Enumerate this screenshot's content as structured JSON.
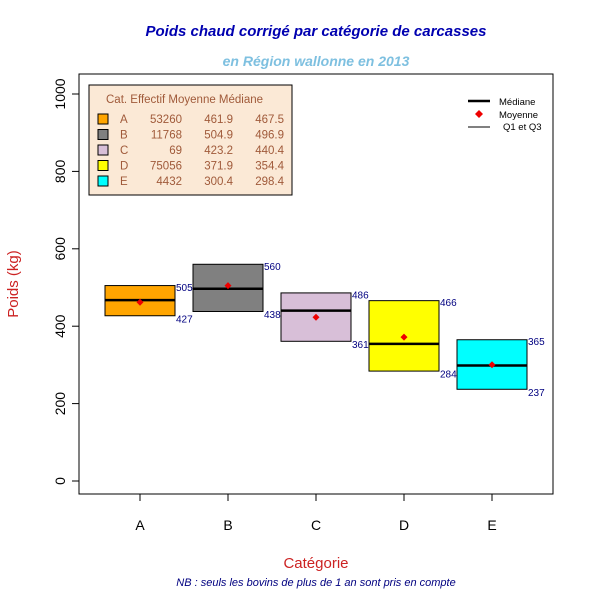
{
  "colors": {
    "title": "#0000b0",
    "subtitle": "#7ec0e0",
    "axis_label": "#cc2222",
    "legend_bg": "#fbe9d6",
    "mean_marker": "#ee0000",
    "value_labels": "#000080"
  },
  "chart_data": {
    "type": "box",
    "title": "Poids chaud corrigé par catégorie de carcasses",
    "subtitle": "en Région wallonne en 2013",
    "xlabel": "Catégorie",
    "ylabel": "Poids (kg)",
    "note": "NB : seuls les bovins de plus de 1 an sont pris en compte",
    "ylim": [
      0,
      1000
    ],
    "yticks": [
      "0",
      "200",
      "400",
      "600",
      "800",
      "1000"
    ],
    "categories": [
      {
        "name": "A",
        "color": "#ffa500",
        "q1": 427,
        "q3": 505,
        "median": 467.5,
        "mean": 461.9,
        "q1_label": "427",
        "q3_label": "505"
      },
      {
        "name": "B",
        "color": "#808080",
        "q1": 438,
        "q3": 560,
        "median": 496.9,
        "mean": 504.9,
        "q1_label": "438",
        "q3_label": "560"
      },
      {
        "name": "C",
        "color": "#d8bfd8",
        "q1": 361,
        "q3": 486,
        "median": 440.4,
        "mean": 423.2,
        "q1_label": "361",
        "q3_label": "486"
      },
      {
        "name": "D",
        "color": "#ffff00",
        "q1": 284,
        "q3": 466,
        "median": 354.4,
        "mean": 371.9,
        "q1_label": "284",
        "q3_label": "466"
      },
      {
        "name": "E",
        "color": "#00ffff",
        "q1": 237,
        "q3": 365,
        "median": 298.4,
        "mean": 300.4,
        "q1_label": "237",
        "q3_label": "365"
      }
    ],
    "table_legend": {
      "header": "Cat. Effectif Moyenne Médiane",
      "rows": [
        {
          "cat": "A",
          "effectif": "53260",
          "moyenne": "461.9",
          "mediane": "467.5"
        },
        {
          "cat": "B",
          "effectif": "11768",
          "moyenne": "504.9",
          "mediane": "496.9"
        },
        {
          "cat": "C",
          "effectif": "69",
          "moyenne": "423.2",
          "mediane": "440.4"
        },
        {
          "cat": "D",
          "effectif": "75056",
          "moyenne": "371.9",
          "mediane": "354.4"
        },
        {
          "cat": "E",
          "effectif": "4432",
          "moyenne": "300.4",
          "mediane": "298.4"
        }
      ]
    },
    "key_legend": {
      "median": "Médiane",
      "mean": "Moyenne",
      "quartiles": "Q1 et Q3"
    }
  }
}
